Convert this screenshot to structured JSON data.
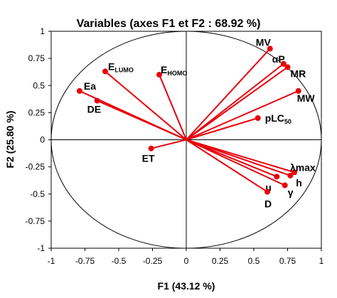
{
  "chart_data": {
    "type": "scatter",
    "subtype": "correlation-circle",
    "title": "Variables (axes F1 et F2 : 68.92 %)",
    "xlabel": "F1 (43.12 %)",
    "ylabel": "F2 (25.80 %)",
    "xlim": [
      -1,
      1
    ],
    "ylim": [
      -1,
      1
    ],
    "xticks": [
      -1,
      -0.75,
      -0.5,
      -0.25,
      0,
      0.25,
      0.5,
      0.75,
      1
    ],
    "yticks": [
      -1,
      -0.75,
      -0.5,
      -0.25,
      0,
      0.25,
      0.5,
      0.75,
      1
    ],
    "xtick_labels": [
      "-1",
      "-0.75",
      "-0.5",
      "-0.25",
      "0",
      "0.25",
      "0.5",
      "0.75",
      "1"
    ],
    "ytick_labels": [
      "-1",
      "-0.75",
      "-0.5",
      "-0.25",
      "0",
      "0.25",
      "0.5",
      "0.75",
      "1"
    ],
    "grid": false,
    "unit_circle": true,
    "color": "#e8000b",
    "points": [
      {
        "label": "E",
        "sub": "LUMO",
        "x": -0.6,
        "y": 0.63
      },
      {
        "label": "E",
        "sub": "HOMO",
        "x": -0.2,
        "y": 0.6
      },
      {
        "label": "Ea",
        "sub": "",
        "x": -0.79,
        "y": 0.45
      },
      {
        "label": "DE",
        "sub": "",
        "x": -0.66,
        "y": 0.36
      },
      {
        "label": "ET",
        "sub": "",
        "x": -0.26,
        "y": -0.08
      },
      {
        "label": "MV",
        "sub": "",
        "x": 0.62,
        "y": 0.84
      },
      {
        "label": "αP",
        "sub": "",
        "x": 0.72,
        "y": 0.7
      },
      {
        "label": "MR",
        "sub": "",
        "x": 0.75,
        "y": 0.67
      },
      {
        "label": "MW",
        "sub": "",
        "x": 0.83,
        "y": 0.45
      },
      {
        "label": "pLC",
        "sub": "50",
        "x": 0.53,
        "y": 0.2
      },
      {
        "label": "λmax",
        "sub": "",
        "x": 0.8,
        "y": -0.3
      },
      {
        "label": "h",
        "sub": "",
        "x": 0.77,
        "y": -0.33
      },
      {
        "label": "μ",
        "sub": "",
        "x": 0.67,
        "y": -0.34
      },
      {
        "label": "γ",
        "sub": "",
        "x": 0.73,
        "y": -0.42
      },
      {
        "label": "D",
        "sub": "",
        "x": 0.6,
        "y": -0.48
      }
    ]
  }
}
